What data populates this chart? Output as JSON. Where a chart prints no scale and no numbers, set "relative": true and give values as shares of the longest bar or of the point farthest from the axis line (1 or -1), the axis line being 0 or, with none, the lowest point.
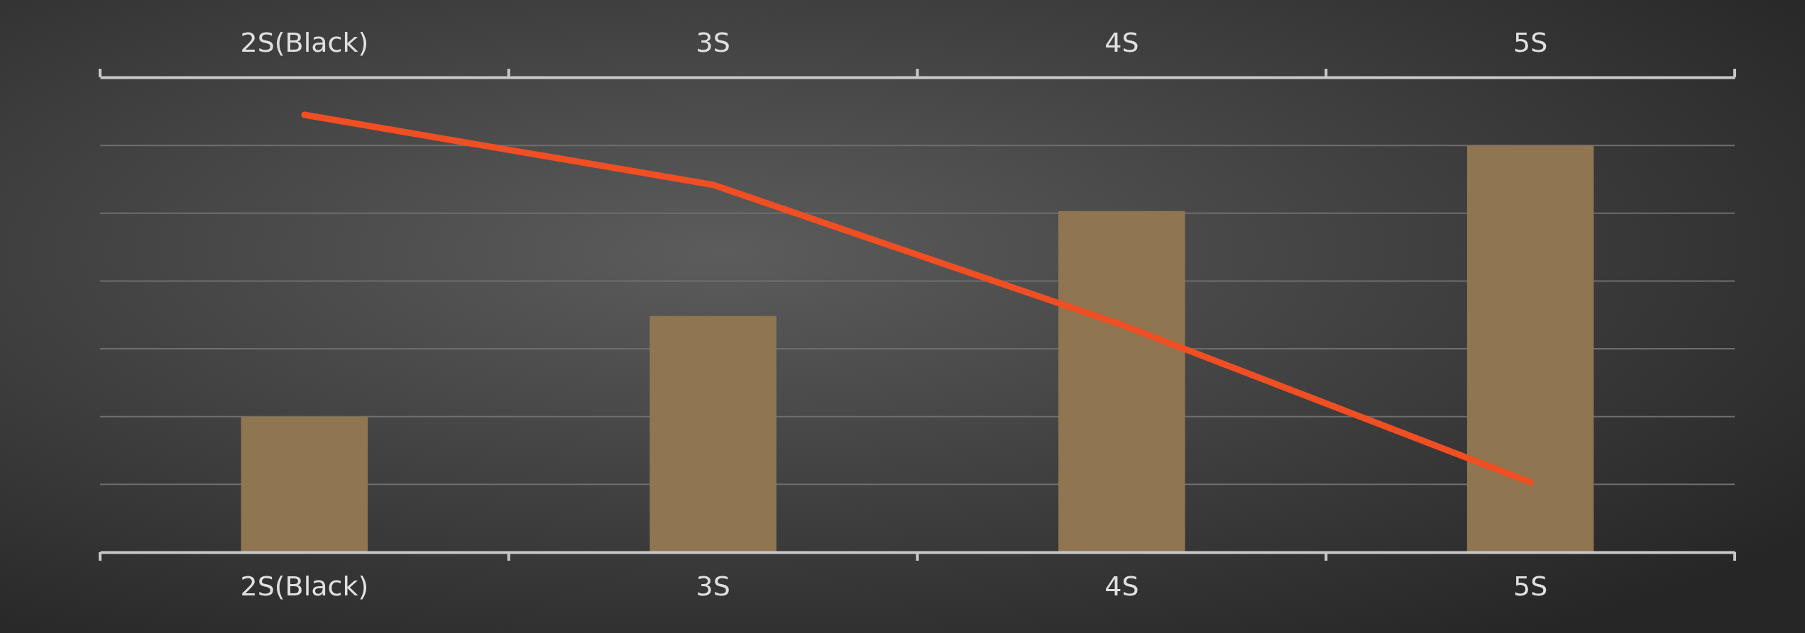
{
  "chart_data": {
    "type": "bar",
    "categories": [
      "2S(Black)",
      "3S",
      "4S",
      "5S"
    ],
    "relative": true,
    "grid": "y",
    "series": [
      {
        "color": "#8f7550",
        "values": [
          0.31,
          0.54,
          0.78,
          0.93
        ]
      },
      {
        "type": "line",
        "color": "#f04e23",
        "values": [
          1,
          0.84,
          0.52,
          0.16
        ]
      }
    ]
  }
}
